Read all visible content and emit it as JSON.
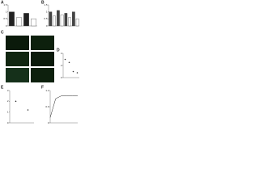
{
  "figure": {
    "panel_labels": [
      "A",
      "B",
      "C",
      "D",
      "E",
      "F"
    ]
  },
  "chart_data": [
    {
      "type": "bar",
      "values": [
        1,
        0.6,
        0.9,
        0.5
      ],
      "categories": [
        null,
        null,
        null,
        null
      ],
      "color": "#222222",
      "ylim": [
        0,
        1.5
      ],
      "yticks": [
        0,
        0.5,
        1,
        1.5
      ]
    },
    {
      "type": "bar",
      "values": [
        1,
        0.7,
        1.1,
        0.8,
        0.9,
        0.6,
        1,
        0.5
      ],
      "categories": [
        null,
        null,
        null,
        null,
        null,
        null,
        null,
        null
      ],
      "color": "#444444",
      "ylim": [
        0,
        1.5
      ],
      "yticks": [
        0,
        0.5,
        1,
        1.5
      ]
    },
    {
      "type": "dot",
      "values": [
        3,
        2.5,
        1,
        0.8
      ],
      "categories": [
        null,
        null,
        null,
        null
      ],
      "color": "#333333",
      "ylim": [
        0,
        4
      ],
      "yticks": [
        0,
        2,
        4
      ]
    },
    {
      "type": "dot",
      "values": [
        2,
        1.2
      ],
      "categories": [
        null,
        null
      ],
      "color": "#333333",
      "ylim": [
        0,
        3
      ],
      "yticks": [
        0,
        1,
        2,
        3
      ]
    },
    {
      "type": "line",
      "x": [
        0,
        1,
        2,
        3,
        4,
        5
      ],
      "values": [
        0.2,
        0.9,
        1,
        1,
        1,
        1
      ],
      "color": "#222222",
      "xlim": [
        0,
        5
      ],
      "ylim": [
        0,
        1.2
      ],
      "yticks": [
        0,
        0.6,
        1.2
      ]
    }
  ]
}
